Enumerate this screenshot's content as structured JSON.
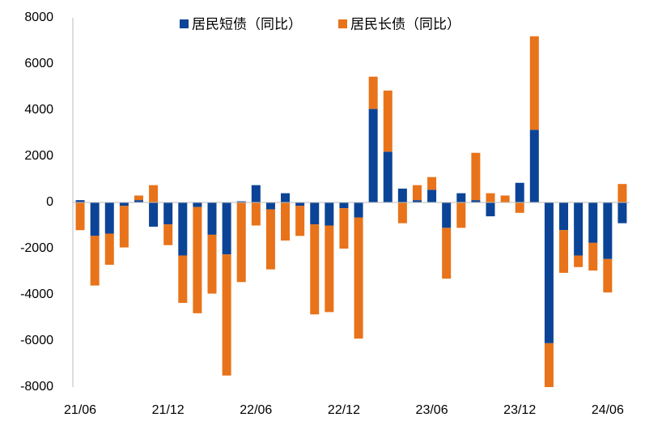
{
  "chart_data": {
    "type": "bar",
    "stacked": true,
    "categories": [
      "21/06",
      null,
      null,
      null,
      null,
      null,
      "21/12",
      null,
      null,
      null,
      null,
      null,
      "22/06",
      null,
      null,
      null,
      null,
      null,
      "22/12",
      null,
      null,
      null,
      null,
      null,
      "23/06",
      null,
      null,
      null,
      null,
      null,
      "23/12",
      null,
      null,
      null,
      null,
      null,
      "24/06",
      null
    ],
    "series": [
      {
        "name": "居民短债（同比）",
        "color": "#0b4496",
        "values": [
          100,
          -1450,
          -1350,
          -150,
          100,
          -1050,
          -950,
          -2300,
          -200,
          -1400,
          -2250,
          50,
          750,
          -300,
          400,
          -150,
          -950,
          -1000,
          -250,
          -650,
          4050,
          2200,
          600,
          100,
          550,
          -1100,
          400,
          100,
          -600,
          0,
          850,
          3150,
          -6100,
          -1200,
          -2300,
          -1750,
          -2450,
          -900
        ]
      },
      {
        "name": "居民长债（同比）",
        "color": "#e8731a",
        "values": [
          -1200,
          -2150,
          -1350,
          -1800,
          200,
          750,
          -900,
          -2050,
          -4600,
          -2550,
          -5250,
          -3450,
          -1000,
          -2600,
          -1650,
          -1300,
          -3900,
          -3750,
          -1750,
          -5250,
          1400,
          2650,
          -900,
          650,
          550,
          -2200,
          -1100,
          2050,
          400,
          300,
          -450,
          4050,
          -1900,
          -1850,
          -500,
          -1200,
          -1450,
          800
        ]
      }
    ],
    "ylim": [
      -8000,
      8000
    ],
    "yticks": [
      -8000,
      -6000,
      -4000,
      -2000,
      0,
      2000,
      4000,
      6000,
      8000
    ],
    "grid": false,
    "legend": "top"
  }
}
